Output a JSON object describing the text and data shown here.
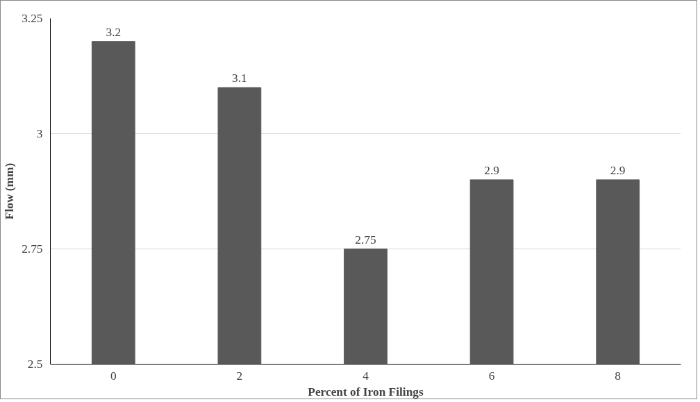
{
  "chart_data": {
    "type": "bar",
    "xlabel": "Percent of Iron Filings",
    "ylabel": "Flow (mm)",
    "categories": [
      "0",
      "2",
      "4",
      "6",
      "8"
    ],
    "values": [
      3.2,
      3.1,
      2.75,
      2.9,
      2.9
    ],
    "color": "#595959",
    "ylim": [
      2.5,
      3.25
    ],
    "yticks": [
      2.5,
      2.75,
      3,
      3.25
    ],
    "grid": "y",
    "data_labels": true
  }
}
